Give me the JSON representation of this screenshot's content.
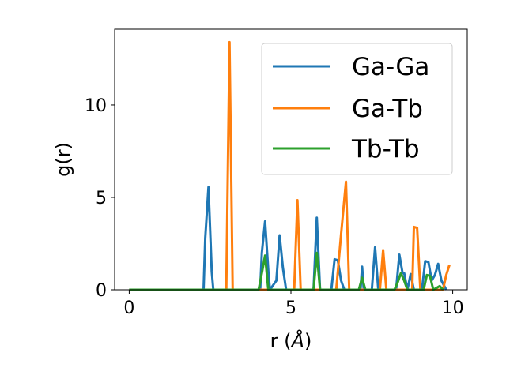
{
  "chart_data": {
    "type": "line",
    "xlabel": "r (",
    "xlabel_unit": "Å",
    "xlabel_close": ")",
    "ylabel": "g(r)",
    "xlim": [
      -0.45,
      10.45
    ],
    "ylim": [
      0,
      14.1
    ],
    "grid": false,
    "legend_placement": "top-right",
    "x_ticks": [
      {
        "value": 0,
        "label": "0"
      },
      {
        "value": 5,
        "label": "5"
      },
      {
        "value": 10,
        "label": "10"
      }
    ],
    "y_ticks": [
      {
        "value": 0,
        "label": "0"
      },
      {
        "value": 5,
        "label": "5"
      },
      {
        "value": 10,
        "label": "10"
      }
    ],
    "series": [
      {
        "name": "Ga-Ga",
        "color": "#1f77b4",
        "x": [
          0,
          2.3,
          2.35,
          2.45,
          2.55,
          2.6,
          4.05,
          4.1,
          4.2,
          4.3,
          4.35,
          4.55,
          4.65,
          4.75,
          4.85,
          5.7,
          5.8,
          5.9,
          6.25,
          6.35,
          6.45,
          6.55,
          6.65,
          7.15,
          7.2,
          7.25,
          7.5,
          7.6,
          7.7,
          8.25,
          8.35,
          8.45,
          8.5,
          8.6,
          8.7,
          8.8,
          9.05,
          9.15,
          9.25,
          9.35,
          9.45,
          9.55,
          9.65,
          9.8
        ],
        "y": [
          0,
          0,
          2.8,
          5.55,
          1.0,
          0,
          0,
          2.0,
          3.7,
          1.0,
          0,
          0.5,
          2.95,
          1.2,
          0,
          0,
          3.9,
          0,
          0,
          1.65,
          1.6,
          0.5,
          0,
          0,
          1.25,
          0,
          0,
          2.3,
          0,
          0,
          1.9,
          0.9,
          0.9,
          0,
          0.85,
          0,
          0,
          1.55,
          1.5,
          0.5,
          0.8,
          1.4,
          0.5,
          0
        ]
      },
      {
        "name": "Ga-Tb",
        "color": "#ff7f0e",
        "x": [
          0,
          3.0,
          3.1,
          3.2,
          5.1,
          5.2,
          5.3,
          6.4,
          6.55,
          6.7,
          6.8,
          7.75,
          7.85,
          7.95,
          8.75,
          8.8,
          8.9,
          9.0,
          9.7,
          9.8,
          9.9
        ],
        "y": [
          0,
          0,
          13.4,
          0,
          0,
          4.85,
          0,
          0,
          3.0,
          5.85,
          0,
          0,
          2.15,
          0,
          0,
          3.4,
          3.35,
          0,
          0,
          0.8,
          1.35
        ]
      },
      {
        "name": "Tb-Tb",
        "color": "#2ca02c",
        "x": [
          0,
          4.0,
          4.1,
          4.2,
          4.3,
          5.7,
          5.8,
          5.9,
          7.1,
          7.2,
          7.3,
          8.2,
          8.3,
          8.4,
          8.5,
          8.6,
          9.1,
          9.2,
          9.3,
          9.4,
          9.6,
          9.7
        ],
        "y": [
          0,
          0,
          0.9,
          1.85,
          0,
          0,
          2.0,
          0,
          0,
          0.65,
          0,
          0,
          0.4,
          0.9,
          0.5,
          0,
          0,
          0.8,
          0.75,
          0,
          0.2,
          0
        ]
      }
    ]
  }
}
